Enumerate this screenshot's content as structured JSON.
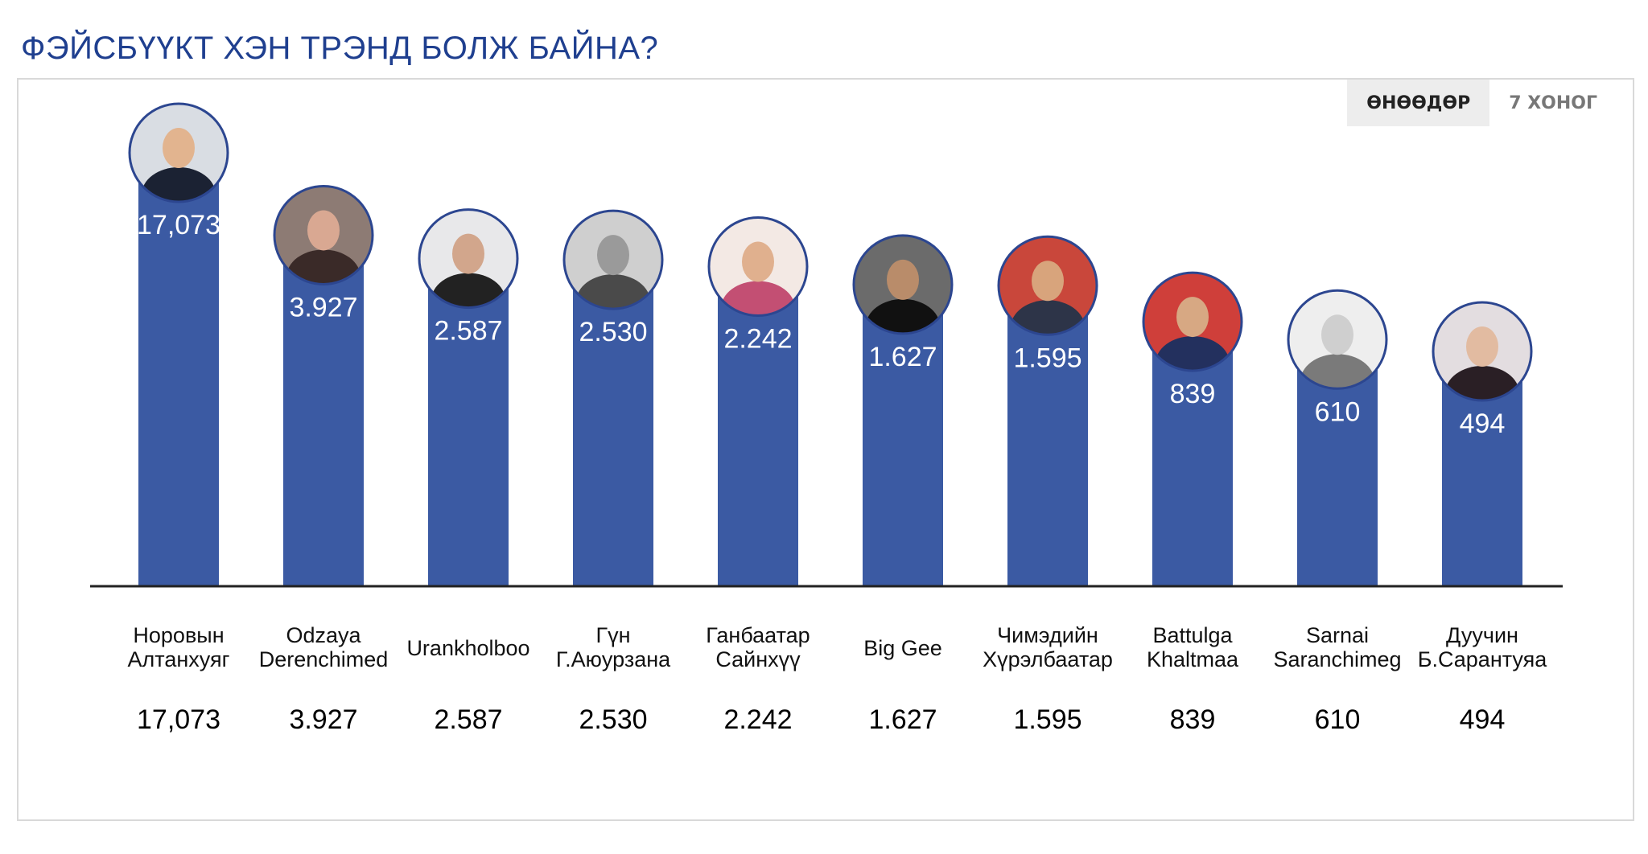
{
  "header": {
    "title": "ФЭЙСБҮҮКТ ХЭН ТРЭНД БОЛЖ БАЙНА?"
  },
  "tabs": [
    {
      "label": "ӨНӨӨДӨР",
      "active": true
    },
    {
      "label": "7 ХОНОГ",
      "active": false
    }
  ],
  "colors": {
    "bar": "#3b5aa3",
    "title": "#1f3f8f",
    "avatar_ring": "#2c4690"
  },
  "chart_data": {
    "type": "bar",
    "title": "",
    "xlabel": "",
    "ylabel": "",
    "categories": [
      [
        "Норовын",
        "Алтанхуяг"
      ],
      [
        "Odzaya",
        "Derenchimed"
      ],
      [
        "Urankholboo"
      ],
      [
        "Гүн",
        "Г.Аюурзана"
      ],
      [
        "Ганбаатар",
        "Сайнхүү"
      ],
      [
        "Big Gee"
      ],
      [
        "Чимэдийн",
        "Хүрэлбаатар"
      ],
      [
        "Battulga",
        "Khaltmaa"
      ],
      [
        "Sarnai",
        "Saranchimeg"
      ],
      [
        "Дуучин",
        "Б.Сарантуяа"
      ]
    ],
    "value_labels": [
      "17,073",
      "3.927",
      "2.587",
      "2.530",
      "2.242",
      "1.627",
      "1.595",
      "839",
      "610",
      "494"
    ],
    "series": [
      {
        "values": [
          17073,
          3927,
          2587,
          2530,
          2242,
          1627,
          1595,
          839,
          610,
          494
        ]
      }
    ]
  }
}
